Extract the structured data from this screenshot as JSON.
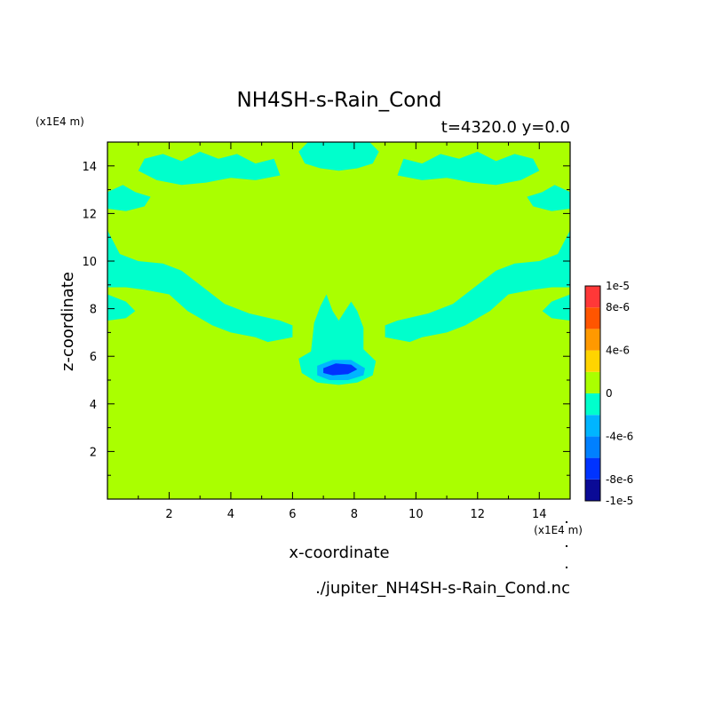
{
  "chart_data": {
    "type": "heatmap",
    "title": "NH4SH-s-Rain_Cond",
    "subtitle": "t=4320.0 y=0.0",
    "xlabel": "x-coordinate",
    "ylabel": "z-coordinate",
    "x_unit": "(x1E4 m)",
    "y_unit": "(x1E4 m)",
    "xlim": [
      0,
      15
    ],
    "ylim": [
      0,
      15
    ],
    "xticks": [
      "2",
      "4",
      "6",
      "8",
      "10",
      "12",
      "14"
    ],
    "yticks": [
      "2",
      "4",
      "6",
      "8",
      "10",
      "12",
      "14"
    ],
    "source_file": "./jupiter_NH4SH-s-Rain_Cond.nc",
    "colorbar": {
      "labels": [
        "1e-5",
        "8e-6",
        "4e-6",
        "0",
        "-4e-6",
        "-8e-6",
        "-1e-5"
      ],
      "levels": [
        -1e-05,
        -8e-06,
        -6e-06,
        -4e-06,
        -2e-06,
        0,
        2e-06,
        4e-06,
        6e-06,
        8e-06,
        1e-05
      ],
      "colors": [
        "#0a0a96",
        "#0033ff",
        "#0080ff",
        "#00b5ff",
        "#00ffcc",
        "#aaff00",
        "#ffd400",
        "#ff9900",
        "#ff5500",
        "#ff3838"
      ]
    },
    "colors": {
      "background": "#aaff00",
      "near_zero_negative": "#00ffcc",
      "moderate_negative": "#00b5ff",
      "strong_negative": "#0033ff"
    },
    "regions": [
      {
        "level": "near_zero_negative",
        "note": "left arm",
        "polygon": [
          [
            0,
            11.3
          ],
          [
            0.4,
            10.3
          ],
          [
            1.0,
            10.0
          ],
          [
            1.8,
            9.9
          ],
          [
            2.4,
            9.6
          ],
          [
            3.0,
            9.0
          ],
          [
            3.8,
            8.2
          ],
          [
            4.6,
            7.8
          ],
          [
            5.6,
            7.5
          ],
          [
            6.0,
            7.3
          ],
          [
            6.0,
            6.8
          ],
          [
            5.2,
            6.6
          ],
          [
            4.8,
            6.8
          ],
          [
            4.0,
            7.0
          ],
          [
            3.4,
            7.3
          ],
          [
            2.6,
            7.9
          ],
          [
            2.0,
            8.6
          ],
          [
            1.2,
            8.8
          ],
          [
            0.6,
            8.9
          ],
          [
            0,
            8.9
          ]
        ]
      },
      {
        "level": "near_zero_negative",
        "note": "right arm",
        "polygon": [
          [
            15,
            11.3
          ],
          [
            14.6,
            10.3
          ],
          [
            14.0,
            10.0
          ],
          [
            13.2,
            9.9
          ],
          [
            12.6,
            9.6
          ],
          [
            12.0,
            9.0
          ],
          [
            11.2,
            8.2
          ],
          [
            10.4,
            7.8
          ],
          [
            9.4,
            7.5
          ],
          [
            9.0,
            7.3
          ],
          [
            9.0,
            6.8
          ],
          [
            9.8,
            6.6
          ],
          [
            10.2,
            6.8
          ],
          [
            11.0,
            7.0
          ],
          [
            11.6,
            7.3
          ],
          [
            12.4,
            7.9
          ],
          [
            13.0,
            8.6
          ],
          [
            13.8,
            8.8
          ],
          [
            14.4,
            8.9
          ],
          [
            15,
            8.9
          ]
        ]
      },
      {
        "level": "near_zero_negative",
        "note": "left edge lobe",
        "polygon": [
          [
            0,
            8.6
          ],
          [
            0.6,
            8.3
          ],
          [
            0.9,
            7.9
          ],
          [
            0.6,
            7.6
          ],
          [
            0,
            7.5
          ]
        ]
      },
      {
        "level": "near_zero_negative",
        "note": "right edge lobe",
        "polygon": [
          [
            15,
            8.6
          ],
          [
            14.4,
            8.3
          ],
          [
            14.1,
            7.9
          ],
          [
            14.4,
            7.6
          ],
          [
            15,
            7.5
          ]
        ]
      },
      {
        "level": "near_zero_negative",
        "note": "central column",
        "polygon": [
          [
            6.2,
            5.9
          ],
          [
            6.6,
            6.2
          ],
          [
            6.7,
            7.4
          ],
          [
            6.9,
            8.1
          ],
          [
            7.1,
            8.6
          ],
          [
            7.3,
            7.9
          ],
          [
            7.5,
            7.5
          ],
          [
            7.7,
            7.9
          ],
          [
            7.9,
            8.3
          ],
          [
            8.1,
            7.9
          ],
          [
            8.3,
            7.2
          ],
          [
            8.3,
            6.3
          ],
          [
            8.7,
            5.8
          ],
          [
            8.6,
            5.2
          ],
          [
            8.1,
            4.9
          ],
          [
            7.5,
            4.8
          ],
          [
            6.8,
            4.9
          ],
          [
            6.3,
            5.3
          ]
        ]
      },
      {
        "level": "moderate_negative",
        "note": "core",
        "polygon": [
          [
            6.8,
            5.6
          ],
          [
            7.3,
            5.85
          ],
          [
            7.9,
            5.85
          ],
          [
            8.35,
            5.5
          ],
          [
            8.3,
            5.2
          ],
          [
            7.8,
            5.0
          ],
          [
            7.2,
            5.0
          ],
          [
            6.8,
            5.2
          ]
        ]
      },
      {
        "level": "strong_negative",
        "note": "center",
        "polygon": [
          [
            7.0,
            5.5
          ],
          [
            7.4,
            5.7
          ],
          [
            7.9,
            5.65
          ],
          [
            8.1,
            5.45
          ],
          [
            7.8,
            5.25
          ],
          [
            7.3,
            5.2
          ],
          [
            7.0,
            5.3
          ]
        ]
      },
      {
        "level": "near_zero_negative",
        "note": "top center band",
        "polygon": [
          [
            6.5,
            15
          ],
          [
            6.2,
            14.6
          ],
          [
            6.4,
            14.1
          ],
          [
            6.9,
            13.9
          ],
          [
            7.5,
            13.8
          ],
          [
            8.1,
            13.9
          ],
          [
            8.6,
            14.1
          ],
          [
            8.8,
            14.6
          ],
          [
            8.5,
            15
          ]
        ]
      },
      {
        "level": "near_zero_negative",
        "note": "top left patches",
        "polygon": [
          [
            1.2,
            14.3
          ],
          [
            1.8,
            14.5
          ],
          [
            2.4,
            14.2
          ],
          [
            3.0,
            14.6
          ],
          [
            3.6,
            14.3
          ],
          [
            4.2,
            14.5
          ],
          [
            4.8,
            14.1
          ],
          [
            5.4,
            14.3
          ],
          [
            5.6,
            13.6
          ],
          [
            4.8,
            13.4
          ],
          [
            4.0,
            13.5
          ],
          [
            3.2,
            13.3
          ],
          [
            2.4,
            13.2
          ],
          [
            1.6,
            13.4
          ],
          [
            1.0,
            13.8
          ]
        ]
      },
      {
        "level": "near_zero_negative",
        "note": "top right patches",
        "polygon": [
          [
            13.8,
            14.3
          ],
          [
            13.2,
            14.5
          ],
          [
            12.6,
            14.2
          ],
          [
            12.0,
            14.6
          ],
          [
            11.4,
            14.3
          ],
          [
            10.8,
            14.5
          ],
          [
            10.2,
            14.1
          ],
          [
            9.6,
            14.3
          ],
          [
            9.4,
            13.6
          ],
          [
            10.2,
            13.4
          ],
          [
            11.0,
            13.5
          ],
          [
            11.8,
            13.3
          ],
          [
            12.6,
            13.2
          ],
          [
            13.4,
            13.4
          ],
          [
            14.0,
            13.8
          ]
        ]
      },
      {
        "level": "near_zero_negative",
        "note": "left cloud edge",
        "polygon": [
          [
            0,
            12.9
          ],
          [
            0.5,
            13.2
          ],
          [
            0.9,
            12.9
          ],
          [
            1.4,
            12.7
          ],
          [
            1.2,
            12.3
          ],
          [
            0.6,
            12.1
          ],
          [
            0,
            12.2
          ]
        ]
      },
      {
        "level": "near_zero_negative",
        "note": "right cloud edge",
        "polygon": [
          [
            15,
            12.9
          ],
          [
            14.5,
            13.2
          ],
          [
            14.1,
            12.9
          ],
          [
            13.6,
            12.7
          ],
          [
            13.8,
            12.3
          ],
          [
            14.4,
            12.1
          ],
          [
            15,
            12.2
          ]
        ]
      }
    ]
  }
}
